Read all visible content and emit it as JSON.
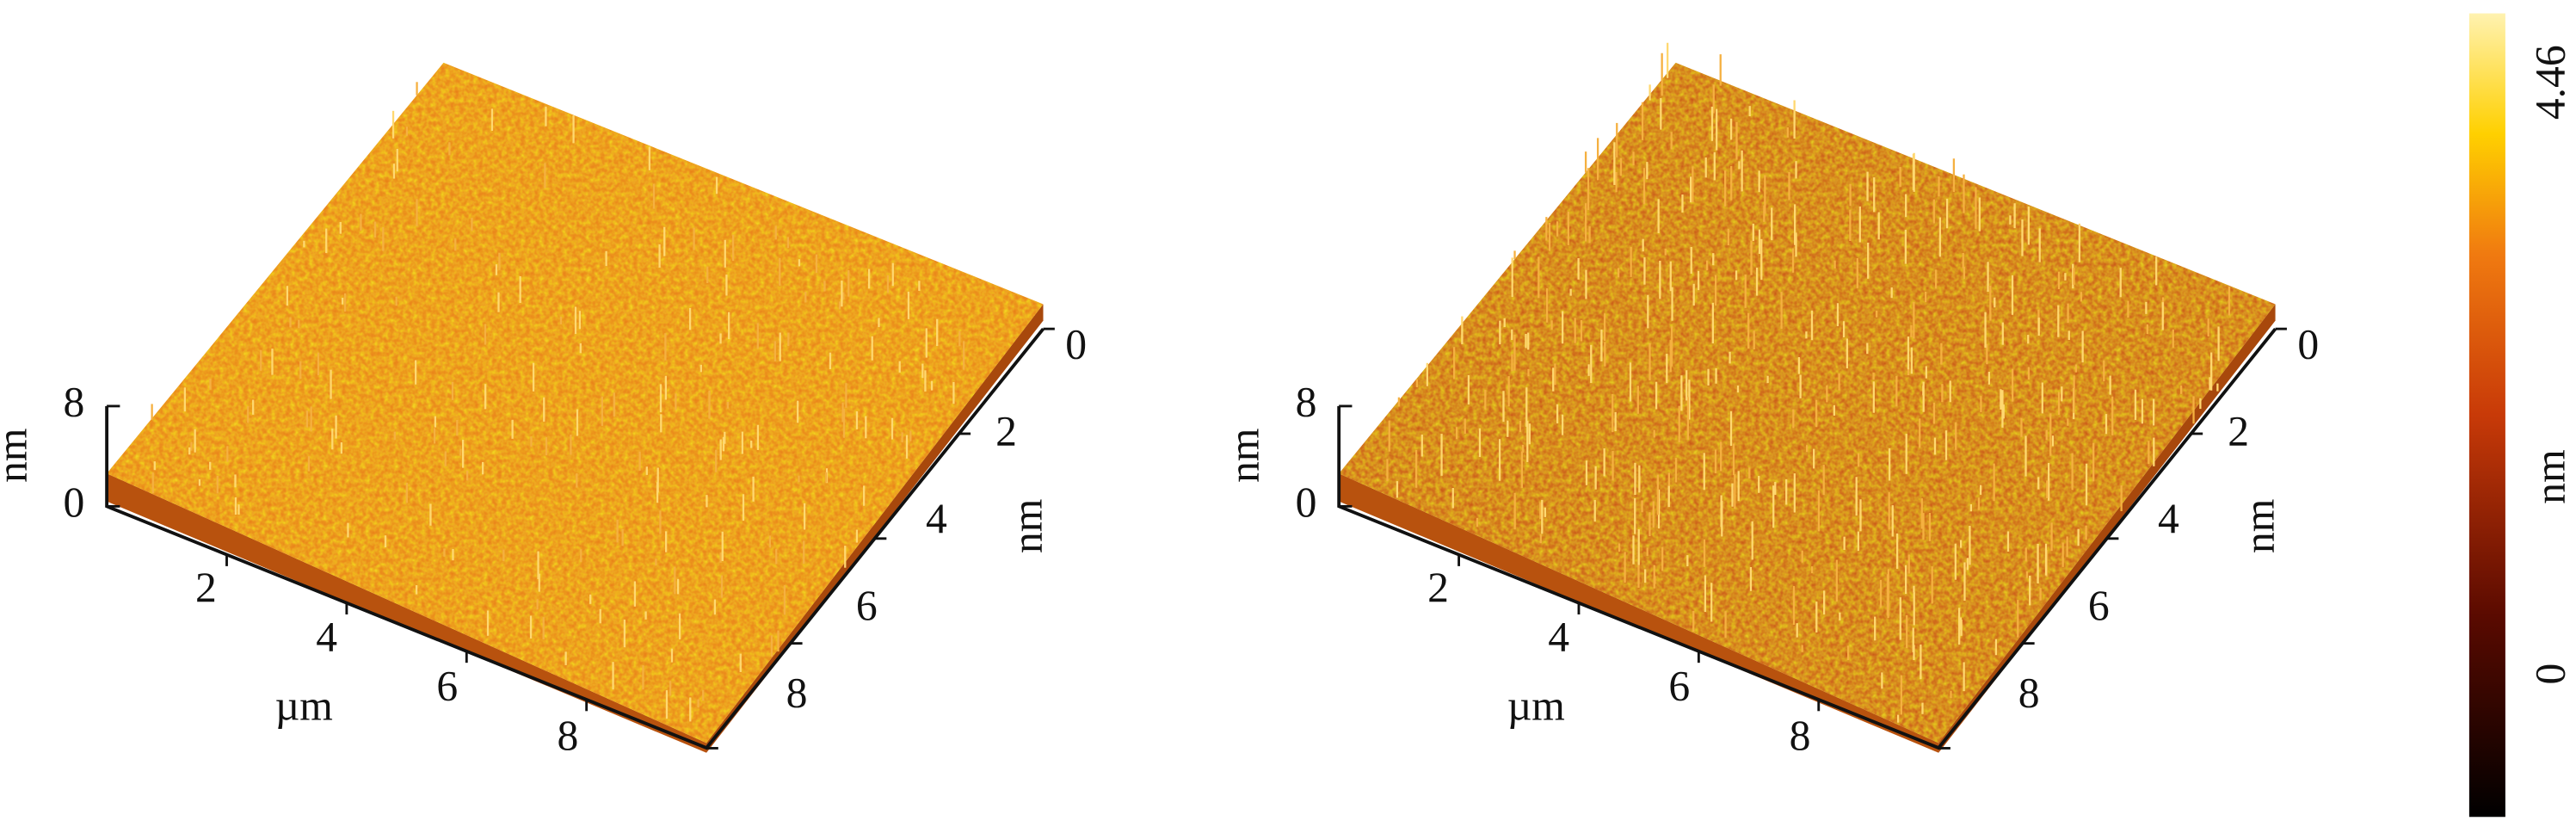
{
  "panels": [
    {
      "z_axis": {
        "label": "nm",
        "ticks": [
          0,
          8
        ]
      },
      "x_axis": {
        "label": "µm",
        "ticks": [
          2,
          4,
          6,
          8
        ]
      },
      "y_axis": {
        "label": "nm",
        "ticks": [
          0,
          2,
          4,
          6,
          8
        ]
      }
    },
    {
      "z_axis": {
        "label": "nm",
        "ticks": [
          0,
          8
        ]
      },
      "x_axis": {
        "label": "µm",
        "ticks": [
          2,
          4,
          6,
          8
        ]
      },
      "y_axis": {
        "label": "nm",
        "ticks": [
          0,
          2,
          4,
          6,
          8
        ]
      }
    }
  ],
  "colorbar": {
    "label": "nm",
    "ticks": [
      0,
      4.46
    ]
  }
}
